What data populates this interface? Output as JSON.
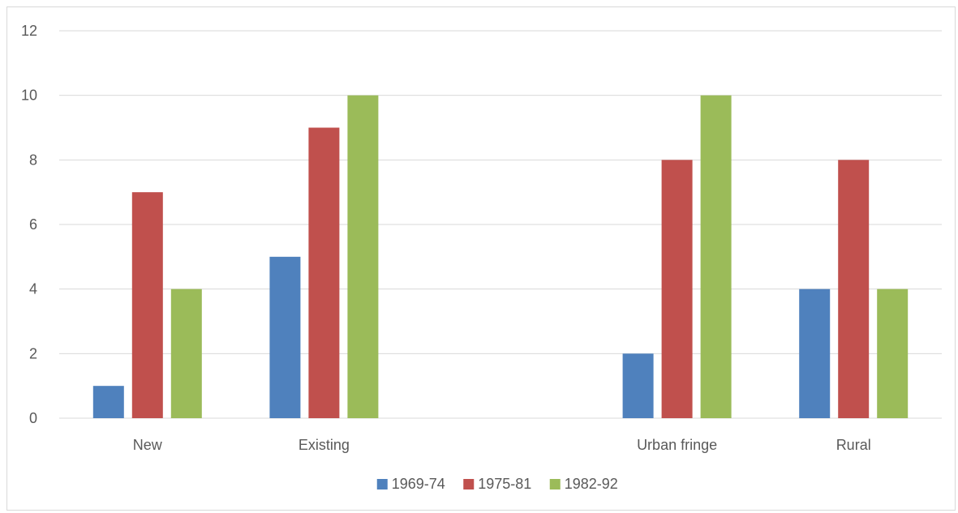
{
  "chart_data": {
    "type": "bar",
    "categories": [
      "New",
      "Existing",
      "",
      "Urban fringe",
      "Rural"
    ],
    "series": [
      {
        "name": "1969-74",
        "values": [
          1,
          5,
          null,
          2,
          4
        ],
        "color": "#4f81bd"
      },
      {
        "name": "1975-81",
        "values": [
          7,
          9,
          null,
          8,
          8
        ],
        "color": "#c0504d"
      },
      {
        "name": "1982-92",
        "values": [
          4,
          10,
          null,
          10,
          4
        ],
        "color": "#9bbb59"
      }
    ],
    "ylim": [
      0,
      12
    ],
    "yticks": [
      0,
      2,
      4,
      6,
      8,
      10,
      12
    ],
    "grid": true,
    "legend_position": "bottom"
  }
}
